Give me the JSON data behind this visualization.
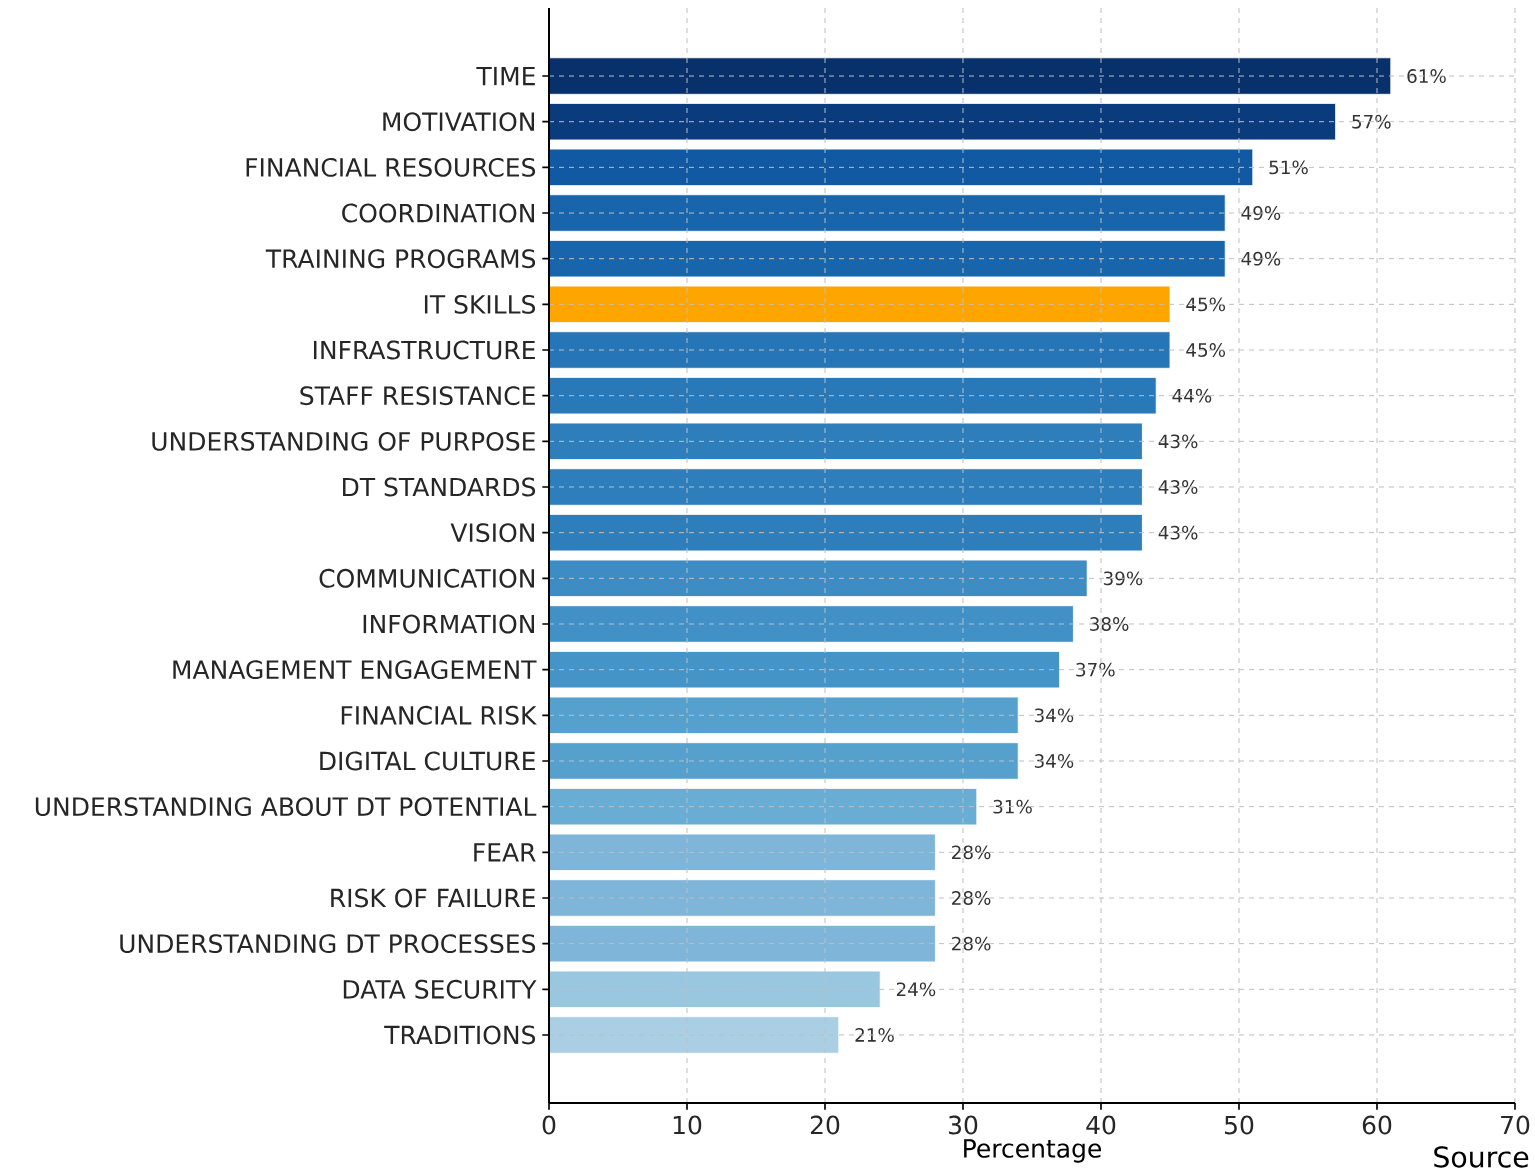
{
  "chart_data": {
    "type": "bar",
    "orientation": "horizontal",
    "xlabel": "Percentage",
    "categories": [
      "TIME",
      "MOTIVATION",
      "FINANCIAL RESOURCES",
      "COORDINATION",
      "TRAINING PROGRAMS",
      "IT SKILLS",
      "INFRASTRUCTURE",
      "STAFF RESISTANCE",
      "UNDERSTANDING OF PURPOSE",
      "DT STANDARDS",
      "VISION",
      "COMMUNICATION",
      "INFORMATION",
      "MANAGEMENT ENGAGEMENT",
      "FINANCIAL RISK",
      "DIGITAL CULTURE",
      "UNDERSTANDING ABOUT DT POTENTIAL",
      "FEAR",
      "RISK OF FAILURE",
      "UNDERSTANDING DT PROCESSES",
      "DATA SECURITY",
      "TRADITIONS"
    ],
    "values": [
      61,
      57,
      51,
      49,
      49,
      45,
      45,
      44,
      43,
      43,
      43,
      39,
      38,
      37,
      34,
      34,
      31,
      28,
      28,
      28,
      24,
      21
    ],
    "value_labels": [
      "61%",
      "57%",
      "51%",
      "49%",
      "49%",
      "45%",
      "45%",
      "44%",
      "43%",
      "43%",
      "43%",
      "39%",
      "38%",
      "37%",
      "34%",
      "34%",
      "31%",
      "28%",
      "28%",
      "28%",
      "24%",
      "21%"
    ],
    "colors": [
      "#08306b",
      "#0a3b7c",
      "#1259a3",
      "#1865ab",
      "#1865ab",
      "#ffa500",
      "#2575b7",
      "#2979b9",
      "#2e7ebc",
      "#2e7ebc",
      "#2e7ebc",
      "#3d8dc4",
      "#4191c6",
      "#4594c7",
      "#56a0ce",
      "#56a0ce",
      "#69add5",
      "#7fb5d9",
      "#7fb5d9",
      "#7fb5d9",
      "#99c7e0",
      "#aacfe5"
    ],
    "xlim": [
      0,
      70
    ],
    "xticks": [
      0,
      10,
      20,
      30,
      40,
      50,
      60,
      70
    ],
    "grid": true,
    "annotations": [
      "Source"
    ]
  }
}
